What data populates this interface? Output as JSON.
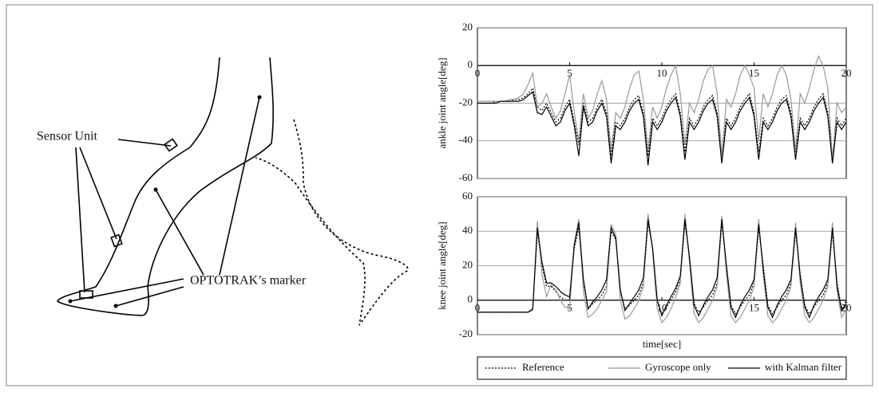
{
  "diagram": {
    "labels": [
      "Sensor Unit",
      "OPTOTRAK’s marker"
    ]
  },
  "chart_data": [
    {
      "type": "line",
      "y_label": "ankle joint angle[deg]",
      "xlim": [
        0,
        20
      ],
      "xticks": [
        0,
        5,
        10,
        15,
        20
      ],
      "ylim": [
        -60,
        20
      ],
      "yticks": [
        -60,
        -40,
        -20,
        0,
        20
      ],
      "grid": true,
      "x": [
        0,
        0.25,
        0.5,
        0.75,
        1,
        1.25,
        1.5,
        1.75,
        2,
        2.25,
        2.5,
        2.75,
        3,
        3.25,
        3.5,
        3.75,
        4,
        4.25,
        4.5,
        4.75,
        5,
        5.25,
        5.5,
        5.75,
        6,
        6.25,
        6.5,
        6.75,
        7,
        7.25,
        7.5,
        7.75,
        8,
        8.25,
        8.5,
        8.75,
        9,
        9.25,
        9.5,
        9.75,
        10,
        10.25,
        10.5,
        10.75,
        11,
        11.25,
        11.5,
        11.75,
        12,
        12.25,
        12.5,
        12.75,
        13,
        13.25,
        13.5,
        13.75,
        14,
        14.25,
        14.5,
        14.75,
        15,
        15.25,
        15.5,
        15.75,
        16,
        16.25,
        16.5,
        16.75,
        17,
        17.25,
        17.5,
        17.75,
        18,
        18.25,
        18.5,
        18.75,
        19,
        19.25,
        19.5,
        19.75,
        20
      ],
      "series": [
        {
          "name": "Reference",
          "color": "#000000",
          "style": "dotted",
          "values": [
            -20,
            -20,
            -20,
            -20,
            -19,
            -19,
            -19,
            -19,
            -18,
            -18,
            -17,
            -15,
            -12,
            -22,
            -24,
            -20,
            -25,
            -30,
            -28,
            -22,
            -18,
            -30,
            -42,
            -20,
            -30,
            -28,
            -22,
            -18,
            -25,
            -48,
            -30,
            -32,
            -28,
            -22,
            -18,
            -16,
            -25,
            -48,
            -28,
            -32,
            -28,
            -22,
            -18,
            -15,
            -25,
            -46,
            -28,
            -32,
            -28,
            -22,
            -18,
            -16,
            -25,
            -48,
            -28,
            -32,
            -28,
            -22,
            -18,
            -15,
            -25,
            -46,
            -28,
            -32,
            -28,
            -22,
            -18,
            -16,
            -25,
            -46,
            -28,
            -32,
            -28,
            -22,
            -18,
            -15,
            -25,
            -48,
            -28,
            -32,
            -28
          ]
        },
        {
          "name": "Gyroscope only",
          "color": "#999999",
          "style": "solid",
          "values": [
            -19,
            -19,
            -19,
            -19,
            -19,
            -19,
            -19,
            -18,
            -18,
            -17,
            -15,
            -10,
            -4,
            -22,
            -20,
            -15,
            -22,
            -28,
            -24,
            -15,
            -5,
            -25,
            -40,
            -15,
            -28,
            -24,
            -15,
            -8,
            -18,
            -45,
            -25,
            -28,
            -22,
            -12,
            -5,
            -3,
            -18,
            -45,
            -22,
            -28,
            -22,
            -12,
            -5,
            0,
            -15,
            -42,
            -20,
            -25,
            -18,
            -8,
            -2,
            0,
            -15,
            -48,
            -18,
            -22,
            -15,
            -5,
            0,
            -5,
            -12,
            -40,
            -15,
            -22,
            -15,
            -5,
            0,
            -5,
            -18,
            -45,
            -15,
            -20,
            -12,
            -2,
            5,
            0,
            -12,
            -50,
            -20,
            -25,
            -22
          ]
        },
        {
          "name": "with Kalman filter",
          "color": "#000000",
          "style": "solid",
          "values": [
            -20,
            -20,
            -20,
            -20,
            -20,
            -19,
            -19,
            -19,
            -19,
            -19,
            -18,
            -16,
            -14,
            -25,
            -26,
            -22,
            -27,
            -32,
            -30,
            -24,
            -20,
            -32,
            -48,
            -22,
            -32,
            -30,
            -24,
            -20,
            -27,
            -52,
            -32,
            -34,
            -30,
            -24,
            -20,
            -18,
            -27,
            -53,
            -30,
            -34,
            -30,
            -24,
            -20,
            -17,
            -27,
            -50,
            -30,
            -34,
            -30,
            -24,
            -20,
            -18,
            -27,
            -52,
            -30,
            -34,
            -30,
            -24,
            -20,
            -17,
            -27,
            -50,
            -30,
            -34,
            -30,
            -24,
            -20,
            -18,
            -27,
            -50,
            -30,
            -34,
            -30,
            -24,
            -20,
            -17,
            -27,
            -52,
            -30,
            -34,
            -30
          ]
        }
      ]
    },
    {
      "type": "line",
      "y_label": "knee joint angle[deg]",
      "x_label": "time[sec]",
      "xlim": [
        0,
        20
      ],
      "xticks": [
        0,
        5,
        10,
        15,
        20
      ],
      "ylim": [
        -20,
        60
      ],
      "yticks": [
        -20,
        0,
        20,
        40,
        60
      ],
      "grid": true,
      "x": [
        0,
        0.25,
        0.5,
        0.75,
        1,
        1.25,
        1.5,
        1.75,
        2,
        2.25,
        2.5,
        2.75,
        3,
        3.25,
        3.5,
        3.75,
        4,
        4.25,
        4.5,
        4.75,
        5,
        5.25,
        5.5,
        5.75,
        6,
        6.25,
        6.5,
        6.75,
        7,
        7.25,
        7.5,
        7.75,
        8,
        8.25,
        8.5,
        8.75,
        9,
        9.25,
        9.5,
        9.75,
        10,
        10.25,
        10.5,
        10.75,
        11,
        11.25,
        11.5,
        11.75,
        12,
        12.25,
        12.5,
        12.75,
        13,
        13.25,
        13.5,
        13.75,
        14,
        14.25,
        14.5,
        14.75,
        15,
        15.25,
        15.5,
        15.75,
        16,
        16.25,
        16.5,
        16.75,
        17,
        17.25,
        17.5,
        17.75,
        18,
        18.25,
        18.5,
        18.75,
        19,
        19.25,
        19.5,
        19.75,
        20
      ],
      "series": [
        {
          "color": "#000000",
          "style": "dotted",
          "values": [
            -7,
            -7,
            -7,
            -7,
            -7,
            -7,
            -7,
            -7,
            -7,
            -7,
            -7,
            -7,
            -5,
            40,
            20,
            8,
            8,
            5,
            2,
            0,
            0,
            30,
            42,
            10,
            -5,
            -2,
            0,
            3,
            8,
            40,
            35,
            5,
            -5,
            -3,
            0,
            3,
            10,
            45,
            30,
            0,
            -8,
            -4,
            0,
            5,
            12,
            45,
            25,
            -2,
            -7,
            -4,
            0,
            3,
            10,
            45,
            20,
            -3,
            -8,
            -4,
            0,
            3,
            10,
            42,
            20,
            -3,
            -8,
            -4,
            0,
            3,
            10,
            40,
            15,
            -3,
            -8,
            -4,
            0,
            3,
            10,
            40,
            10,
            -5,
            0
          ]
        },
        {
          "color": "#999999",
          "style": "solid",
          "values": [
            -7,
            -7,
            -7,
            -7,
            -7,
            -7,
            -7,
            -7,
            -7,
            -7,
            -7,
            -7,
            -6,
            46,
            15,
            2,
            9,
            6,
            0,
            -4,
            -5,
            33,
            47,
            5,
            -10,
            -8,
            -5,
            0,
            5,
            44,
            38,
            0,
            -11,
            -9,
            -5,
            0,
            8,
            50,
            28,
            -5,
            -13,
            -10,
            -5,
            2,
            10,
            50,
            22,
            -8,
            -13,
            -10,
            -5,
            0,
            8,
            49,
            15,
            -9,
            -13,
            -10,
            -5,
            0,
            8,
            47,
            15,
            -9,
            -13,
            -10,
            -5,
            0,
            8,
            45,
            10,
            -9,
            -13,
            -10,
            -5,
            0,
            8,
            45,
            5,
            -10,
            -5
          ]
        },
        {
          "color": "#000000",
          "style": "solid",
          "values": [
            -7,
            -7,
            -7,
            -7,
            -7,
            -7,
            -7,
            -7,
            -7,
            -7,
            -7,
            -7,
            -5,
            42,
            22,
            10,
            10,
            8,
            5,
            3,
            2,
            32,
            45,
            12,
            -5,
            -1,
            2,
            6,
            12,
            42,
            36,
            6,
            -6,
            -2,
            2,
            6,
            13,
            47,
            30,
            0,
            -9,
            -3,
            2,
            7,
            14,
            47,
            25,
            -3,
            -9,
            -3,
            2,
            6,
            13,
            47,
            20,
            -4,
            -10,
            -3,
            2,
            6,
            12,
            44,
            18,
            -4,
            -10,
            -3,
            2,
            6,
            12,
            42,
            14,
            -4,
            -10,
            -3,
            2,
            6,
            12,
            42,
            8,
            -6,
            -2
          ]
        }
      ]
    }
  ]
}
